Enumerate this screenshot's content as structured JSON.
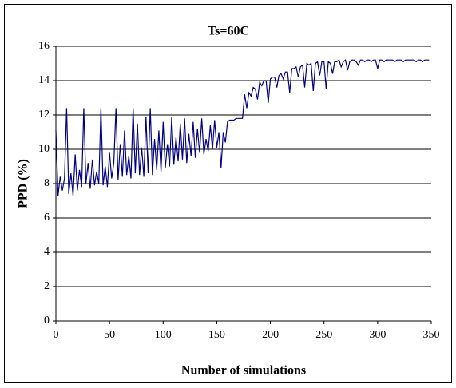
{
  "chart_data": {
    "type": "line",
    "title": "Ts=60C",
    "xlabel": "Number of simulations",
    "ylabel": "PPD (%)",
    "color": "#000080",
    "grid": true,
    "xlim": [
      0,
      350
    ],
    "xticks": [
      0,
      50,
      100,
      150,
      200,
      250,
      300,
      350
    ],
    "ylim": [
      0,
      16
    ],
    "yticks": [
      0,
      2,
      4,
      6,
      8,
      10,
      12,
      14,
      16
    ],
    "x": [
      0,
      2,
      4,
      6,
      8,
      10,
      12,
      14,
      16,
      18,
      20,
      22,
      24,
      26,
      28,
      30,
      32,
      34,
      36,
      38,
      40,
      42,
      44,
      46,
      48,
      50,
      52,
      54,
      56,
      58,
      60,
      62,
      64,
      66,
      68,
      70,
      72,
      74,
      76,
      78,
      80,
      82,
      84,
      86,
      88,
      90,
      92,
      94,
      96,
      98,
      100,
      102,
      104,
      106,
      108,
      110,
      112,
      114,
      116,
      118,
      120,
      122,
      124,
      126,
      128,
      130,
      132,
      134,
      136,
      138,
      140,
      142,
      144,
      146,
      148,
      150,
      152,
      154,
      156,
      158,
      160,
      162,
      164,
      166,
      168,
      170,
      172,
      174,
      176,
      178,
      180,
      182,
      184,
      186,
      188,
      190,
      192,
      194,
      196,
      198,
      200,
      202,
      204,
      206,
      208,
      210,
      212,
      214,
      216,
      218,
      220,
      222,
      224,
      226,
      228,
      230,
      232,
      234,
      236,
      238,
      240,
      242,
      244,
      246,
      248,
      250,
      252,
      254,
      256,
      258,
      260,
      262,
      264,
      266,
      268,
      270,
      272,
      274,
      276,
      278,
      280,
      282,
      284,
      286,
      288,
      290,
      292,
      294,
      296,
      298,
      300,
      302,
      304,
      306,
      308,
      310,
      312,
      314,
      316,
      318,
      320,
      322,
      324,
      326,
      328,
      330,
      332,
      334,
      336,
      338,
      340,
      342,
      344,
      346,
      348
    ],
    "values": [
      11.1,
      7.3,
      8.4,
      7.6,
      8.3,
      12.4,
      7.4,
      8.6,
      7.3,
      9.7,
      7.6,
      8.8,
      7.8,
      12.4,
      8.0,
      9.2,
      7.7,
      9.4,
      7.9,
      8.7,
      8.0,
      12.4,
      7.9,
      9.0,
      7.8,
      9.8,
      8.3,
      9.2,
      12.4,
      8.2,
      10.3,
      8.4,
      11.1,
      8.5,
      9.6,
      8.3,
      12.4,
      8.6,
      11.5,
      8.5,
      10.1,
      8.4,
      11.9,
      8.6,
      12.4,
      8.5,
      10.6,
      8.8,
      11.1,
      8.7,
      11.6,
      8.9,
      10.3,
      9.0,
      11.9,
      9.1,
      10.7,
      9.3,
      11.5,
      9.4,
      11.8,
      9.2,
      10.9,
      9.6,
      11.6,
      9.5,
      11.2,
      9.8,
      11.8,
      9.7,
      10.6,
      9.9,
      11.4,
      10.0,
      11.7,
      10.1,
      11.0,
      8.9,
      11.0,
      10.4,
      11.6,
      11.7,
      11.7,
      11.7,
      11.8,
      11.8,
      11.8,
      11.8,
      13.2,
      12.4,
      13.3,
      13.1,
      13.6,
      13.5,
      12.9,
      13.9,
      13.7,
      14.0,
      14.0,
      12.7,
      14.1,
      14.2,
      14.2,
      13.6,
      14.3,
      14.4,
      14.1,
      14.5,
      14.5,
      13.3,
      14.7,
      14.7,
      14.8,
      14.2,
      14.8,
      14.9,
      13.6,
      15.0,
      14.9,
      15.0,
      13.4,
      15.0,
      15.1,
      14.3,
      15.1,
      15.1,
      13.5,
      15.1,
      15.0,
      14.4,
      15.1,
      15.1,
      15.2,
      14.8,
      15.1,
      15.2,
      14.6,
      15.1,
      15.2,
      15.2,
      15.1,
      14.9,
      15.2,
      15.2,
      15.1,
      15.2,
      15.2,
      15.1,
      15.2,
      15.2,
      14.7,
      15.2,
      15.2,
      15.1,
      15.2,
      15.2,
      15.2,
      15.2,
      15.1,
      15.2,
      15.2,
      15.2,
      15.1,
      15.2,
      15.2,
      15.2,
      15.2,
      15.2,
      15.1,
      15.2,
      15.2,
      15.1,
      15.2,
      15.2,
      15.2
    ]
  }
}
